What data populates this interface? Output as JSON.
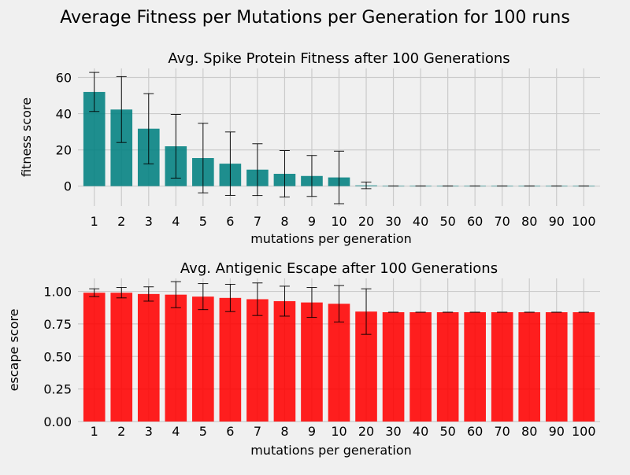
{
  "figure": {
    "suptitle": "Average Fitness per Mutations per Generation for 100 runs",
    "background": "#f0f0f0",
    "grid_color": "#cbcbcb"
  },
  "chart_data": [
    {
      "type": "bar",
      "title": "Avg. Spike Protein Fitness after 100 Generations",
      "xlabel": "mutations per generation",
      "ylabel": "fitness score",
      "categories": [
        "1",
        "2",
        "3",
        "4",
        "5",
        "6",
        "7",
        "8",
        "9",
        "10",
        "20",
        "30",
        "40",
        "50",
        "60",
        "70",
        "80",
        "90",
        "100"
      ],
      "values": [
        52,
        42.3,
        31.7,
        22,
        15.5,
        12.4,
        9.1,
        6.8,
        5.6,
        4.8,
        0.4,
        0.1,
        0.1,
        0.1,
        0.1,
        0.1,
        0.1,
        0.1,
        0.1
      ],
      "error": [
        10.8,
        18.2,
        19.4,
        17.6,
        19.2,
        17.5,
        14.3,
        12.8,
        11.3,
        14.5,
        1.8,
        0,
        0,
        0,
        0,
        0,
        0,
        0,
        0
      ],
      "ylim": [
        -11,
        65
      ],
      "yticks": [
        0,
        20,
        40,
        60
      ],
      "color": "#008080",
      "grid": true
    },
    {
      "type": "bar",
      "title": "Avg. Antigenic Escape after 100 Generations",
      "xlabel": "mutations per generation",
      "ylabel": "escape score",
      "categories": [
        "1",
        "2",
        "3",
        "4",
        "5",
        "6",
        "7",
        "8",
        "9",
        "10",
        "20",
        "30",
        "40",
        "50",
        "60",
        "70",
        "80",
        "90",
        "100"
      ],
      "values": [
        0.99,
        0.99,
        0.98,
        0.975,
        0.96,
        0.95,
        0.94,
        0.925,
        0.915,
        0.905,
        0.845,
        0.84,
        0.84,
        0.84,
        0.84,
        0.84,
        0.84,
        0.84,
        0.84
      ],
      "error": [
        0.03,
        0.04,
        0.055,
        0.1,
        0.1,
        0.105,
        0.125,
        0.115,
        0.115,
        0.14,
        0.175,
        0,
        0,
        0,
        0,
        0,
        0,
        0,
        0
      ],
      "ylim": [
        0,
        1.1
      ],
      "yticks": [
        "0.00",
        "0.25",
        "0.50",
        "0.75",
        "1.00"
      ],
      "color": "#ff0000",
      "grid": true
    }
  ]
}
